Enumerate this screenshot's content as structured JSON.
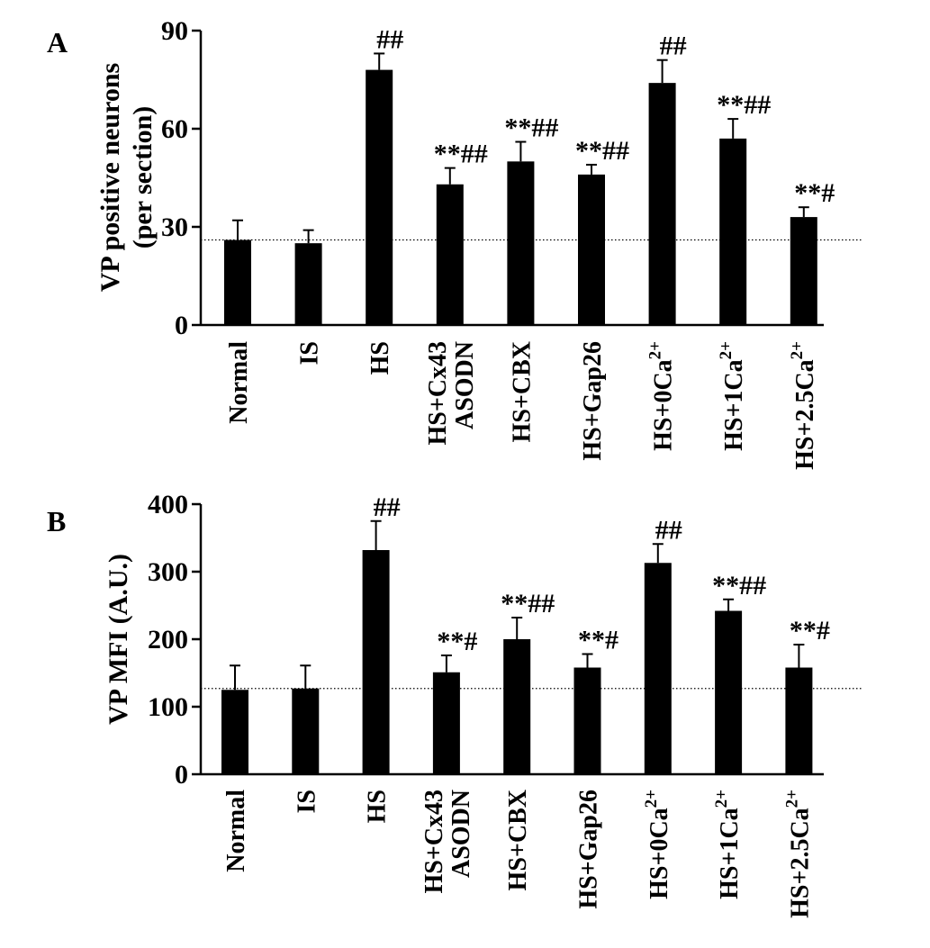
{
  "colors": {
    "bar": "#000000",
    "axis": "#000000",
    "reference_line": "#000000",
    "background": "#ffffff"
  },
  "chart_data": [
    {
      "type": "bar",
      "panel_label": "A",
      "ylabel_lines": [
        "VP positive neurons",
        "(per section)"
      ],
      "ylim": [
        0,
        90
      ],
      "yticks": [
        0,
        30,
        60,
        90
      ],
      "categories": [
        {
          "lines": [
            {
              "base": "Normal"
            }
          ]
        },
        {
          "lines": [
            {
              "base": "IS"
            }
          ]
        },
        {
          "lines": [
            {
              "base": "HS"
            }
          ]
        },
        {
          "lines": [
            {
              "base": "HS+Cx43"
            },
            {
              "base": "ASODN"
            }
          ]
        },
        {
          "lines": [
            {
              "base": "HS+CBX"
            }
          ]
        },
        {
          "lines": [
            {
              "base": "HS+Gap26"
            }
          ]
        },
        {
          "lines": [
            {
              "base": "HS+0Ca",
              "sup": "2+"
            }
          ]
        },
        {
          "lines": [
            {
              "base": "HS+1Ca",
              "sup": "2+"
            }
          ]
        },
        {
          "lines": [
            {
              "base": "HS+2.5Ca",
              "sup": "2+"
            }
          ]
        }
      ],
      "values": [
        26,
        25,
        78,
        43,
        50,
        46,
        74,
        57,
        33
      ],
      "errors": [
        6,
        4,
        5,
        5,
        6,
        3,
        7,
        6,
        3
      ],
      "significance": [
        "",
        "",
        "##",
        "**##",
        "**##",
        "**##",
        "##",
        "**##",
        "**#"
      ],
      "reference_line": 26,
      "grid": false
    },
    {
      "type": "bar",
      "panel_label": "B",
      "ylabel_lines": [
        "VP MFI (A.U.)"
      ],
      "ylim": [
        0,
        400
      ],
      "yticks": [
        0,
        100,
        200,
        300,
        400
      ],
      "categories": [
        {
          "lines": [
            {
              "base": "Normal"
            }
          ]
        },
        {
          "lines": [
            {
              "base": "IS"
            }
          ]
        },
        {
          "lines": [
            {
              "base": "HS"
            }
          ]
        },
        {
          "lines": [
            {
              "base": "HS+Cx43"
            },
            {
              "base": "ASODN"
            }
          ]
        },
        {
          "lines": [
            {
              "base": "HS+CBX"
            }
          ]
        },
        {
          "lines": [
            {
              "base": "HS+Gap26"
            }
          ]
        },
        {
          "lines": [
            {
              "base": "HS+0Ca",
              "sup": "2+"
            }
          ]
        },
        {
          "lines": [
            {
              "base": "HS+1Ca",
              "sup": "2+"
            }
          ]
        },
        {
          "lines": [
            {
              "base": "HS+2.5Ca",
              "sup": "2+"
            }
          ]
        }
      ],
      "values": [
        125,
        127,
        332,
        151,
        200,
        158,
        313,
        242,
        158
      ],
      "errors": [
        36,
        34,
        43,
        25,
        32,
        20,
        28,
        17,
        34
      ],
      "significance": [
        "",
        "",
        "##",
        "**#",
        "**##",
        "**#",
        "##",
        "**##",
        "**#"
      ],
      "reference_line": 127,
      "grid": false
    }
  ]
}
